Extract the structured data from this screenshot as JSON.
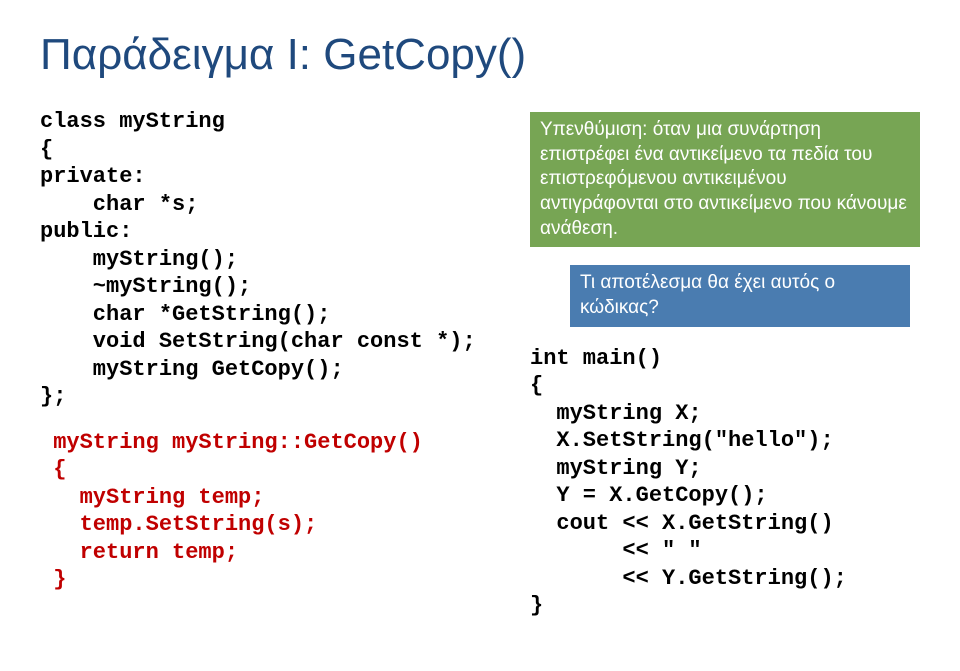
{
  "title": "Παράδειγμα Ι: GetCopy()",
  "left": {
    "code": "class myString\n{\nprivate:\n    char *s;\npublic:\n    myString();\n    ~myString();\n    char *GetString();\n    void SetString(char const *);\n    myString GetCopy();\n};",
    "method": " myString myString::GetCopy()\n {\n   myString temp;\n   temp.SetString(s);\n   return temp;\n }"
  },
  "right": {
    "note1": "Υπενθύμιση: όταν μια συνάρτηση επιστρέφει ένα αντικείμενο τα πεδία του επιστρεφόμενου αντικειμένου αντιγράφονται στο αντικείμενο που κάνουμε ανάθεση.",
    "note2": "Τι αποτέλεσμα θα έχει αυτός ο κώδικας?",
    "code": "int main()\n{\n  myString X;\n  X.SetString(\"hello\");\n  myString Y;\n  Y = X.GetCopy();\n  cout << X.GetString()\n       << \" \"\n       << Y.GetString();\n}"
  }
}
